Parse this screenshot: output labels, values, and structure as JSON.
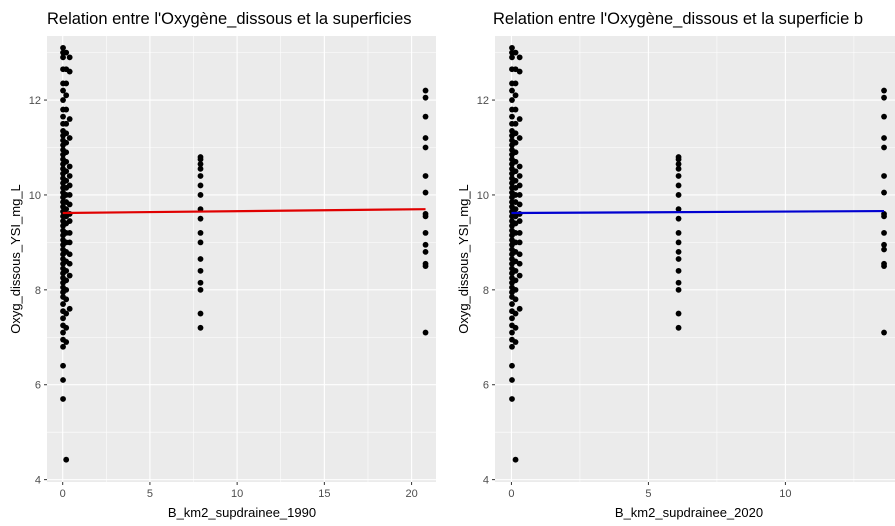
{
  "chart_data": [
    {
      "type": "scatter",
      "title": "Relation entre l'Oxygène_dissous et la superficies",
      "xlabel": "B_km2_supdrainee_1990",
      "ylabel": "Oxyg_dissous_YSI_mg_L",
      "xlim": [
        -0.9,
        21.4
      ],
      "ylim": [
        3.95,
        13.35
      ],
      "xticks": [
        0,
        5,
        10,
        15,
        20
      ],
      "yticks": [
        4,
        6,
        8,
        10,
        12
      ],
      "grid": true,
      "line_color": "#e00000",
      "point_color": "#000000",
      "fit_line": {
        "x": [
          0,
          20.8
        ],
        "y": [
          9.62,
          9.7
        ]
      },
      "groups": [
        {
          "x": 0.02,
          "y": [
            5.7,
            6.1,
            6.4,
            6.8,
            6.95,
            7.1,
            7.25,
            7.4,
            7.55,
            7.7,
            7.85,
            7.95,
            8.05,
            8.15,
            8.25,
            8.35,
            8.45,
            8.55,
            8.65,
            8.75,
            8.85,
            8.95,
            9.05,
            9.15,
            9.25,
            9.35,
            9.45,
            9.55,
            9.65,
            9.75,
            9.85,
            9.95,
            10.05,
            10.15,
            10.25,
            10.35,
            10.45,
            10.55,
            10.65,
            10.75,
            10.85,
            10.95,
            11.05,
            11.15,
            11.25,
            11.35,
            11.5,
            11.65,
            11.8,
            12.0,
            12.2,
            12.35,
            12.65,
            12.9,
            13.0,
            13.1
          ]
        },
        {
          "x": 0.2,
          "y": [
            6.9,
            7.2,
            7.5,
            7.8,
            8.0,
            8.2,
            8.4,
            8.6,
            8.8,
            9.0,
            9.2,
            9.4,
            9.55,
            9.7,
            9.85,
            10.0,
            10.15,
            10.3,
            10.5,
            10.7,
            10.9,
            11.1,
            11.3,
            11.5,
            11.8,
            12.1,
            12.35,
            12.65,
            13.0,
            4.42
          ]
        },
        {
          "x": 0.4,
          "y": [
            7.6,
            8.3,
            8.55,
            8.75,
            9.0,
            9.2,
            9.45,
            9.6,
            9.8,
            10.0,
            10.2,
            10.4,
            10.6,
            11.2,
            11.6,
            12.6,
            12.9
          ]
        },
        {
          "x": 7.9,
          "y": [
            7.2,
            7.5,
            8.0,
            8.15,
            8.4,
            8.65,
            9.0,
            9.2,
            9.5,
            9.7,
            10.0,
            10.2,
            10.4,
            10.55,
            10.65,
            10.75,
            10.8
          ]
        },
        {
          "x": 20.8,
          "y": [
            7.1,
            8.5,
            8.55,
            8.8,
            8.95,
            9.2,
            9.55,
            9.6,
            10.05,
            10.4,
            11.0,
            11.2,
            11.65,
            12.05,
            12.2
          ]
        }
      ]
    },
    {
      "type": "scatter",
      "title": "Relation entre l'Oxygène_dissous et la superficie b",
      "xlabel": "B_km2_supdrainee_2020",
      "ylabel": "Oxyg_dissous_YSI_mg_L",
      "xlim": [
        -0.6,
        14.0
      ],
      "ylim": [
        3.95,
        13.35
      ],
      "xticks": [
        0,
        5,
        10
      ],
      "yticks": [
        4,
        6,
        8,
        10,
        12
      ],
      "grid": true,
      "line_color": "#0000d0",
      "point_color": "#000000",
      "fit_line": {
        "x": [
          0,
          13.6
        ],
        "y": [
          9.62,
          9.66
        ]
      },
      "groups": [
        {
          "x": 0.02,
          "y": [
            5.7,
            6.1,
            6.4,
            6.8,
            6.95,
            7.1,
            7.25,
            7.4,
            7.55,
            7.7,
            7.85,
            7.95,
            8.05,
            8.15,
            8.25,
            8.35,
            8.45,
            8.55,
            8.65,
            8.75,
            8.85,
            8.95,
            9.05,
            9.15,
            9.25,
            9.35,
            9.45,
            9.55,
            9.65,
            9.75,
            9.85,
            9.95,
            10.05,
            10.15,
            10.25,
            10.35,
            10.45,
            10.55,
            10.65,
            10.75,
            10.85,
            10.95,
            11.05,
            11.15,
            11.25,
            11.35,
            11.5,
            11.65,
            11.8,
            12.0,
            12.2,
            12.35,
            12.65,
            12.9,
            13.0,
            13.1
          ]
        },
        {
          "x": 0.15,
          "y": [
            6.9,
            7.2,
            7.5,
            7.8,
            8.0,
            8.2,
            8.4,
            8.6,
            8.8,
            9.0,
            9.2,
            9.4,
            9.55,
            9.7,
            9.85,
            10.0,
            10.15,
            10.3,
            10.5,
            10.7,
            10.9,
            11.1,
            11.3,
            11.5,
            11.8,
            12.1,
            12.35,
            12.65,
            13.0,
            4.42
          ]
        },
        {
          "x": 0.3,
          "y": [
            7.6,
            8.3,
            8.55,
            8.75,
            9.0,
            9.2,
            9.45,
            9.6,
            9.8,
            10.0,
            10.2,
            10.4,
            10.6,
            11.2,
            11.6,
            12.6,
            12.9
          ]
        },
        {
          "x": 6.1,
          "y": [
            7.2,
            7.5,
            8.0,
            8.15,
            8.4,
            8.65,
            8.8,
            9.0,
            9.2,
            9.5,
            9.7,
            10.0,
            10.2,
            10.4,
            10.55,
            10.65,
            10.75,
            10.8
          ]
        },
        {
          "x": 13.6,
          "y": [
            7.1,
            8.5,
            8.55,
            8.85,
            8.95,
            9.2,
            9.55,
            9.6,
            10.05,
            10.4,
            11.0,
            11.2,
            11.65,
            12.05,
            12.2
          ]
        }
      ]
    }
  ]
}
